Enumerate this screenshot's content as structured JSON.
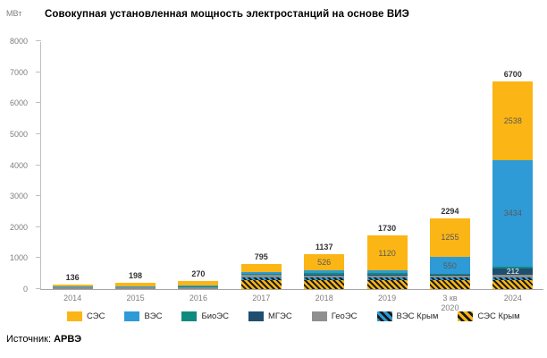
{
  "title": "Совокупная установленная мощность электростанций на основе ВИЭ",
  "unit": "МВт",
  "footer": {
    "label": "Источник:",
    "source": "АРВЭ"
  },
  "chart_data": {
    "type": "bar",
    "stacked": true,
    "title": "Совокупная установленная мощность электростанций на основе ВИЭ",
    "ylabel": "МВт",
    "xlabel": "",
    "ylim": [
      0,
      8000
    ],
    "y_ticks": [
      0,
      1000,
      2000,
      3000,
      4000,
      5000,
      6000,
      7000,
      8000
    ],
    "grid": false,
    "legend_position": "bottom",
    "categories": [
      "2014",
      "2015",
      "2016",
      "2017",
      "2018",
      "2019",
      "3 кв\n2020",
      "2024"
    ],
    "totals": [
      136,
      198,
      270,
      795,
      1137,
      1730,
      2294,
      6700
    ],
    "series": [
      {
        "name": "СЭС Крым",
        "color": "#FBB615",
        "pattern": "hatch",
        "label_color": "#595959",
        "values": [
          0,
          0,
          0,
          297,
          297,
          297,
          297,
          297
        ],
        "data_labels": [
          null,
          null,
          null,
          null,
          null,
          null,
          null,
          null
        ]
      },
      {
        "name": "ВЭС Крым",
        "color": "#2E9BD6",
        "pattern": "hatch",
        "label_color": "#595959",
        "values": [
          0,
          0,
          0,
          87,
          87,
          87,
          87,
          87
        ],
        "data_labels": [
          null,
          null,
          null,
          null,
          null,
          null,
          null,
          null
        ]
      },
      {
        "name": "ГеоЭС",
        "color": "#8F8F8F",
        "pattern": "solid",
        "label_color": "#595959",
        "values": [
          74,
          74,
          74,
          74,
          74,
          74,
          74,
          74
        ],
        "data_labels": [
          null,
          null,
          null,
          null,
          null,
          null,
          null,
          null
        ]
      },
      {
        "name": "МГЭС",
        "color": "#1F4E6E",
        "pattern": "solid",
        "label_color": "#ffffff",
        "values": [
          0,
          0,
          0,
          1,
          5,
          5,
          5,
          212
        ],
        "data_labels": [
          null,
          null,
          null,
          null,
          null,
          null,
          null,
          212
        ]
      },
      {
        "name": "БиоЭС",
        "color": "#108A7E",
        "pattern": "solid",
        "label_color": "#595959",
        "values": [
          5,
          11,
          20,
          45,
          45,
          45,
          26,
          58
        ],
        "data_labels": [
          null,
          null,
          null,
          null,
          null,
          null,
          null,
          null
        ]
      },
      {
        "name": "ВЭС",
        "color": "#2E9BD6",
        "pattern": "solid",
        "label_color": "#595959",
        "values": [
          11,
          11,
          11,
          57,
          103,
          102,
          550,
          3434
        ],
        "data_labels": [
          null,
          null,
          null,
          null,
          null,
          null,
          550,
          3434
        ]
      },
      {
        "name": "СЭС",
        "color": "#FBB615",
        "pattern": "solid",
        "label_color": "#595959",
        "values": [
          46,
          102,
          165,
          234,
          526,
          1120,
          1255,
          2538
        ],
        "data_labels": [
          null,
          null,
          null,
          null,
          526,
          1120,
          1255,
          2538
        ]
      }
    ]
  }
}
